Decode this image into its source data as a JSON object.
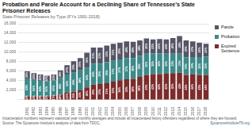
{
  "chart_data": {
    "type": "bar",
    "title": "Probation and Parole Account for a Declining Share of Tennessee’s State\nPrisoner Releases",
    "subtitle": "State Prisoner Releases by Type (FYs 1991-2018)",
    "footnotes": [
      "Incarceration numbers represent statistical year monthly averages and include all incarcerated felony offenders regardless of where they are housed.",
      "Source: The Sycamore Institute’s analysis of data from TDOC."
    ],
    "source": "SycamoreInstituteTN.org",
    "categories": [
      "1991",
      "1992",
      "1993",
      "1994",
      "1995",
      "1996",
      "1997",
      "1998",
      "1999",
      "2000",
      "2001",
      "2002",
      "2003",
      "2004",
      "2005",
      "2006",
      "2007",
      "2008",
      "2009",
      "2010",
      "2011",
      "2012",
      "2013",
      "2014",
      "2015",
      "2016",
      "2017",
      "2018"
    ],
    "series": [
      {
        "name": "Expired\nSentence",
        "color": "#7d2b2b",
        "values": [
          700,
          700,
          700,
          750,
          900,
          1100,
          1500,
          1700,
          2000,
          2600,
          3200,
          3300,
          3500,
          3800,
          4100,
          4300,
          4400,
          4800,
          5200,
          5400,
          5400,
          5500,
          5600,
          5700,
          5200,
          5400,
          5200,
          5200
        ],
        "share_labels": [
          "12%",
          "12%",
          "13%",
          "15%",
          "17%",
          "18%",
          "21%",
          "21%",
          "23%",
          "26%",
          "29%",
          "30%",
          "31%",
          "32%",
          "34%",
          "35%",
          "36%",
          "38%",
          "40%",
          "43%",
          "42%",
          "43%",
          "43%",
          "43%",
          "42%",
          "44%",
          "43%",
          "44%"
        ]
      },
      {
        "name": "Probation",
        "color": "#3d8a8a",
        "values": [
          3800,
          3500,
          3300,
          3100,
          3200,
          3500,
          3800,
          4000,
          4200,
          4200,
          4400,
          4300,
          4400,
          4400,
          4400,
          4500,
          4400,
          4500,
          4500,
          4400,
          4400,
          4200,
          4100,
          4000,
          3700,
          3600,
          3800,
          3900
        ],
        "share_labels": [
          "63%",
          "62%",
          "62%",
          "61%",
          "60%",
          "56%",
          "52%",
          "49%",
          "48%",
          "42%",
          "40%",
          "39%",
          "39%",
          "37%",
          "37%",
          "37%",
          "36%",
          "36%",
          "35%",
          "35%",
          "34%",
          "33%",
          "32%",
          "30%",
          "30%",
          "29%",
          "32%",
          "33%"
        ]
      },
      {
        "name": "Parole",
        "color": "#555566",
        "values": [
          1500,
          1400,
          1300,
          1200,
          1200,
          1600,
          2000,
          2400,
          2600,
          3100,
          3400,
          3400,
          3500,
          3600,
          3500,
          3500,
          3400,
          3200,
          3200,
          2900,
          3000,
          3000,
          3300,
          3700,
          3600,
          3300,
          3000,
          2700
        ],
        "share_labels": [
          "25%",
          "25%",
          "25%",
          "24%",
          "23%",
          "26%",
          "27%",
          "30%",
          "30%",
          "31%",
          "31%",
          "31%",
          "31%",
          "31%",
          "29%",
          "28%",
          "28%",
          "26%",
          "25%",
          "23%",
          "23%",
          "24%",
          "25%",
          "28%",
          "29%",
          "27%",
          "25%",
          "23%"
        ]
      }
    ],
    "stacked": true,
    "ylim": [
      0,
      16000
    ],
    "yticks": [
      {
        "value": 0,
        "label": null
      },
      {
        "value": 2000,
        "label": "2,000"
      },
      {
        "value": 4000,
        "label": "4,000"
      },
      {
        "value": 6000,
        "label": "6,000"
      },
      {
        "value": 8000,
        "label": "8,000"
      },
      {
        "value": 10000,
        "label": "10,000"
      },
      {
        "value": 12000,
        "label": "12,000"
      },
      {
        "value": 14000,
        "label": "14,000"
      },
      {
        "value": 16000,
        "label": "16,000"
      }
    ],
    "grid": true,
    "legend": "right"
  }
}
